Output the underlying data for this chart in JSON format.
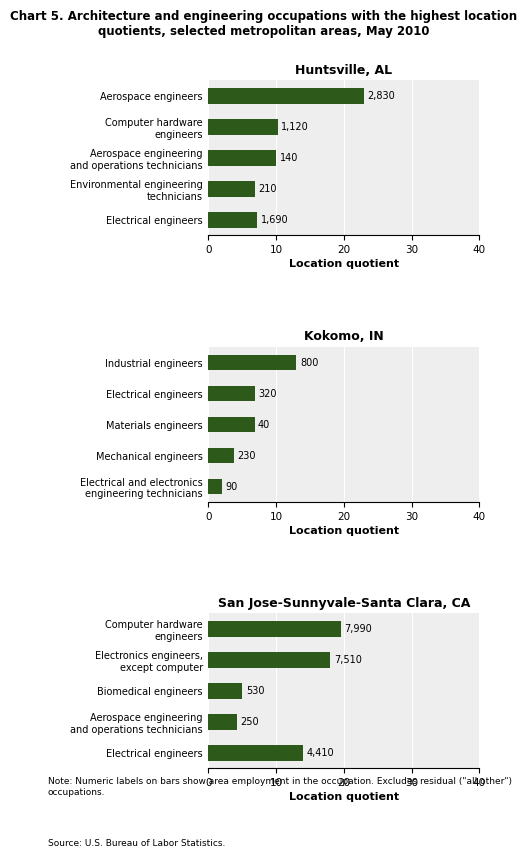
{
  "title": "Chart 5. Architecture and engineering occupations with the highest location\nquotients, selected metropolitan areas, May 2010",
  "title_fontsize": 8.5,
  "bar_color": "#2d5a1b",
  "xlabel": "Location quotient",
  "xlim": [
    0,
    40
  ],
  "xticks": [
    0,
    10,
    20,
    30,
    40
  ],
  "bg_color": "#eeeeee",
  "sections": [
    {
      "title": "Huntsville, AL",
      "categories": [
        "Aerospace engineers",
        "Computer hardware\nengineers",
        "Aerospace engineering\nand operations technicians",
        "Environmental engineering\ntechnicians",
        "Electrical engineers"
      ],
      "values": [
        23.0,
        10.2,
        10.0,
        6.8,
        7.2
      ],
      "labels": [
        "2,830",
        "1,120",
        "140",
        "210",
        "1,690"
      ]
    },
    {
      "title": "Kokomo, IN",
      "categories": [
        "Industrial engineers",
        "Electrical engineers",
        "Materials engineers",
        "Mechanical engineers",
        "Electrical and electronics\nengineering technicians"
      ],
      "values": [
        13.0,
        6.8,
        6.8,
        3.8,
        2.0
      ],
      "labels": [
        "800",
        "320",
        "40",
        "230",
        "90"
      ]
    },
    {
      "title": "San Jose-Sunnyvale-Santa Clara, CA",
      "categories": [
        "Computer hardware\nengineers",
        "Electronics engineers,\nexcept computer",
        "Biomedical engineers",
        "Aerospace engineering\nand operations technicians",
        "Electrical engineers"
      ],
      "values": [
        19.5,
        18.0,
        5.0,
        4.2,
        14.0
      ],
      "labels": [
        "7,990",
        "7,510",
        "530",
        "250",
        "4,410"
      ]
    }
  ],
  "note": "Note: Numeric labels on bars show area employment in the occupation. Excludes residual (\"all other\")\noccupations.",
  "source": "Source: U.S. Bureau of Labor Statistics.",
  "note_fontsize": 6.5,
  "source_fontsize": 6.5
}
